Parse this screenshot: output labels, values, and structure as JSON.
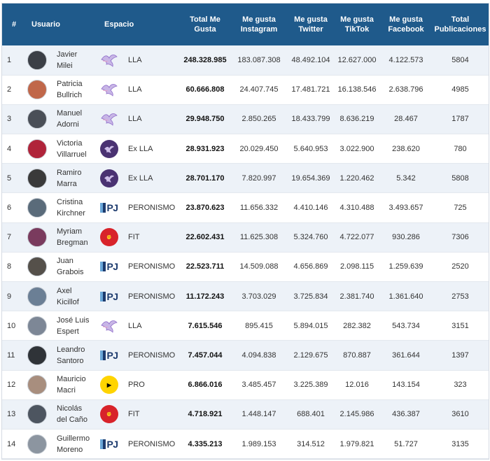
{
  "headers": {
    "rank": "#",
    "user": "Usuario",
    "space": "Espacio",
    "total": "Total Me Gusta",
    "instagram": "Me gusta Instagram",
    "twitter": "Me gusta Twitter",
    "tiktok": "Me gusta TikTok",
    "facebook": "Me gusta Facebook",
    "posts": "Total Publicaciones"
  },
  "rows": [
    {
      "rank": "1",
      "first": "Javier",
      "last": "Milei",
      "party": "LLA",
      "logo": "lla-dove-icon",
      "avatar": "#3b3f46",
      "total": "248.328.985",
      "instagram": "183.087.308",
      "twitter": "48.492.104",
      "tiktok": "12.627.000",
      "facebook": "4.122.573",
      "posts": "5804"
    },
    {
      "rank": "2",
      "first": "Patricia",
      "last": "Bullrich",
      "party": "LLA",
      "logo": "lla-dove-icon",
      "avatar": "#c0674a",
      "total": "60.666.808",
      "instagram": "24.407.745",
      "twitter": "17.481.721",
      "tiktok": "16.138.546",
      "facebook": "2.638.796",
      "posts": "4985"
    },
    {
      "rank": "3",
      "first": "Manuel",
      "last": "Adorni",
      "party": "LLA",
      "logo": "lla-dove-icon",
      "avatar": "#4a4f57",
      "total": "29.948.750",
      "instagram": "2.850.265",
      "twitter": "18.433.799",
      "tiktok": "8.636.219",
      "facebook": "28.467",
      "posts": "1787"
    },
    {
      "rank": "4",
      "first": "Victoria",
      "last": "Villarruel",
      "party": "Ex LLA",
      "logo": "ex-lla-icon",
      "avatar": "#b0243a",
      "total": "28.931.923",
      "instagram": "20.029.450",
      "twitter": "5.640.953",
      "tiktok": "3.022.900",
      "facebook": "238.620",
      "posts": "780"
    },
    {
      "rank": "5",
      "first": "Ramiro",
      "last": "Marra",
      "party": "Ex LLA",
      "logo": "ex-lla-icon",
      "avatar": "#3a3a3a",
      "total": "28.701.170",
      "instagram": "7.820.997",
      "twitter": "19.654.369",
      "tiktok": "1.220.462",
      "facebook": "5.342",
      "posts": "5808"
    },
    {
      "rank": "6",
      "first": "Cristina",
      "last": "Kirchner",
      "party": "PERONISMO",
      "logo": "pj-icon",
      "avatar": "#5a6b7a",
      "total": "23.870.623",
      "instagram": "11.656.332",
      "twitter": "4.410.146",
      "tiktok": "4.310.488",
      "facebook": "3.493.657",
      "posts": "725"
    },
    {
      "rank": "7",
      "first": "Myriam",
      "last": "Bregman",
      "party": "FIT",
      "logo": "fit-icon",
      "avatar": "#7a3b5e",
      "total": "22.602.431",
      "instagram": "11.625.308",
      "twitter": "5.324.760",
      "tiktok": "4.722.077",
      "facebook": "930.286",
      "posts": "7306"
    },
    {
      "rank": "8",
      "first": "Juan",
      "last": "Grabois",
      "party": "PERONISMO",
      "logo": "pj-icon",
      "avatar": "#55504a",
      "total": "22.523.711",
      "instagram": "14.509.088",
      "twitter": "4.656.869",
      "tiktok": "2.098.115",
      "facebook": "1.259.639",
      "posts": "2520"
    },
    {
      "rank": "9",
      "first": "Axel",
      "last": "Kicillof",
      "party": "PERONISMO",
      "logo": "pj-icon",
      "avatar": "#6b7f95",
      "total": "11.172.243",
      "instagram": "3.703.029",
      "twitter": "3.725.834",
      "tiktok": "2.381.740",
      "facebook": "1.361.640",
      "posts": "2753"
    },
    {
      "rank": "10",
      "first": "José Luis",
      "last": "Espert",
      "party": "LLA",
      "logo": "lla-dove-icon",
      "avatar": "#7d8796",
      "total": "7.615.546",
      "instagram": "895.415",
      "twitter": "5.894.015",
      "tiktok": "282.382",
      "facebook": "543.734",
      "posts": "3151"
    },
    {
      "rank": "11",
      "first": "Leandro",
      "last": "Santoro",
      "party": "PERONISMO",
      "logo": "pj-icon",
      "avatar": "#2f3338",
      "total": "7.457.044",
      "instagram": "4.094.838",
      "twitter": "2.129.675",
      "tiktok": "870.887",
      "facebook": "361.644",
      "posts": "1397"
    },
    {
      "rank": "12",
      "first": "Mauricio",
      "last": "Macri",
      "party": "PRO",
      "logo": "pro-icon",
      "avatar": "#a88e7e",
      "total": "6.866.016",
      "instagram": "3.485.457",
      "twitter": "3.225.389",
      "tiktok": "12.016",
      "facebook": "143.154",
      "posts": "323"
    },
    {
      "rank": "13",
      "first": "Nicolás",
      "last": "del Caño",
      "party": "FIT",
      "logo": "fit-icon",
      "avatar": "#4d5560",
      "total": "4.718.921",
      "instagram": "1.448.147",
      "twitter": "688.401",
      "tiktok": "2.145.986",
      "facebook": "436.387",
      "posts": "3610"
    },
    {
      "rank": "14",
      "first": "Guillermo",
      "last": "Moreno",
      "party": "PERONISMO",
      "logo": "pj-icon",
      "avatar": "#8c95a0",
      "total": "4.335.213",
      "instagram": "1.989.153",
      "twitter": "314.512",
      "tiktok": "1.979.821",
      "facebook": "51.727",
      "posts": "3135"
    }
  ],
  "colors": {
    "header_bg": "#1f5a8b",
    "row_alt": "#edf2f8",
    "fit_red": "#d8232a",
    "pro_yellow": "#ffd400",
    "exlla_purple": "#4a3272"
  }
}
